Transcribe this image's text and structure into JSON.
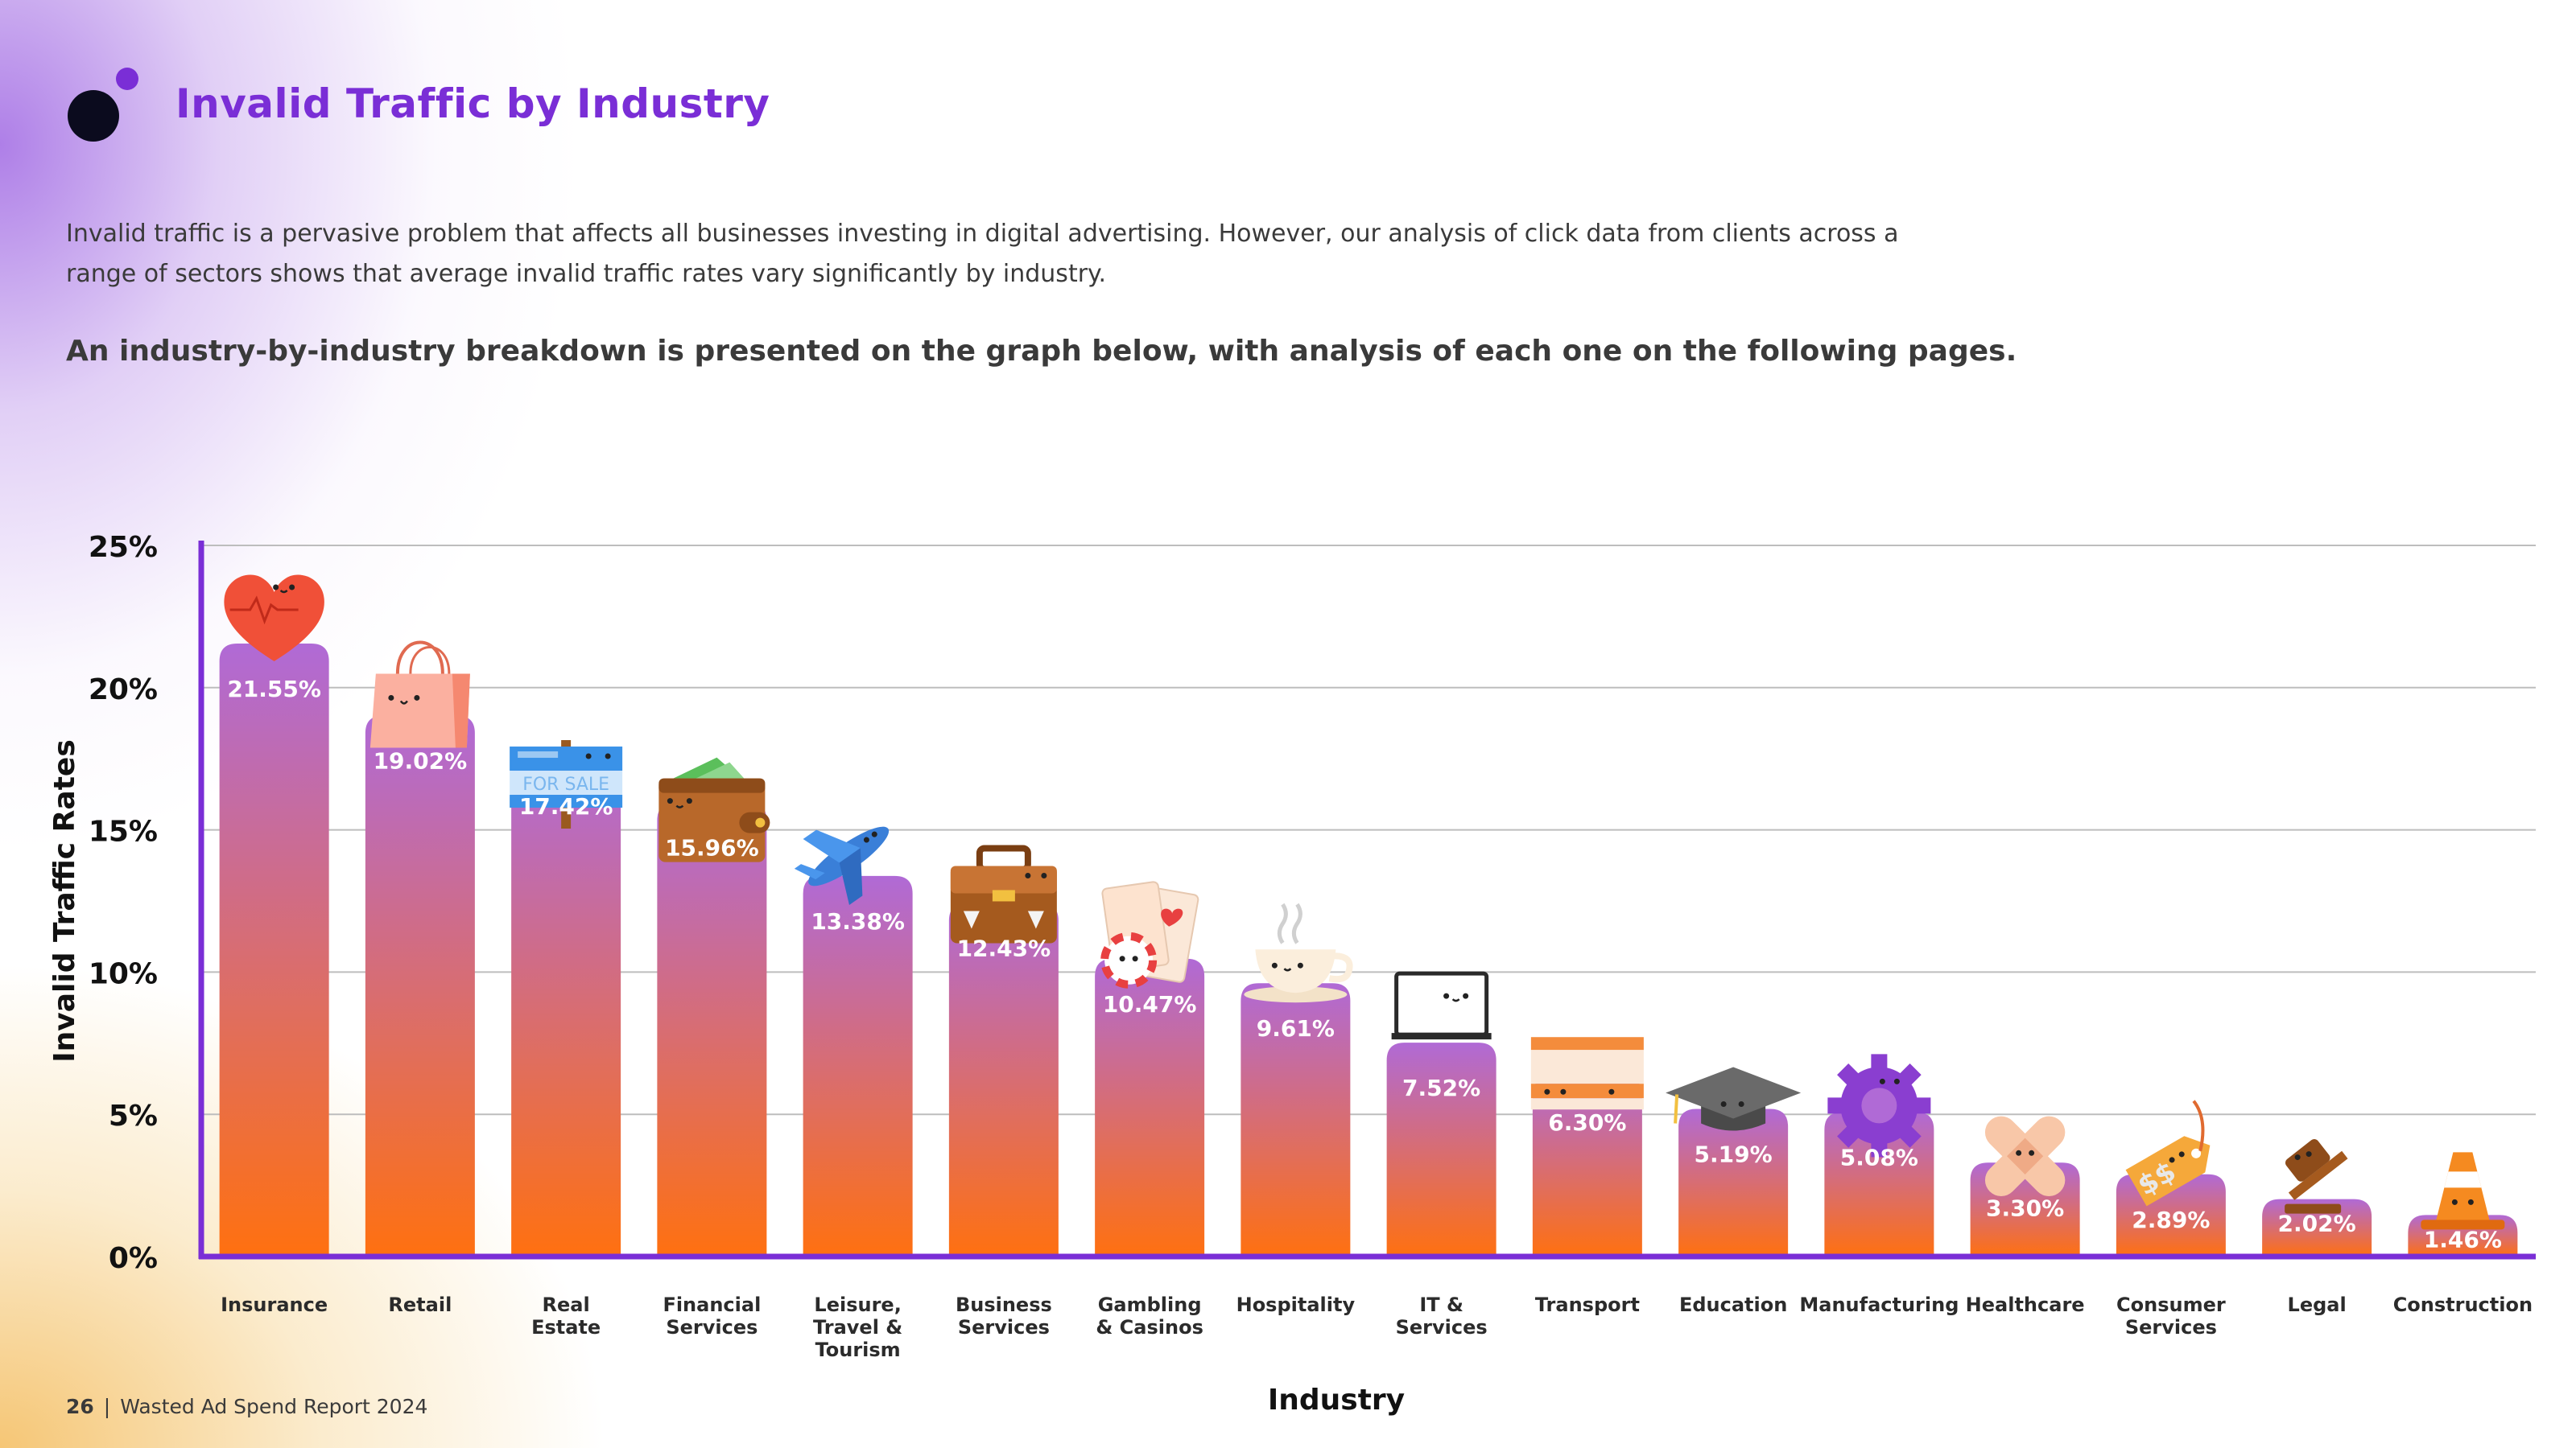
{
  "header": {
    "title": "Invalid Traffic by Industry"
  },
  "intro": {
    "paragraph": "Invalid traffic is a pervasive problem that affects all businesses investing in digital advertising. However, our analysis of click data from clients across a range of sectors shows that average invalid traffic rates vary significantly by industry.",
    "lead": "An industry-by-industry breakdown is presented on the graph below, with analysis of each one on the following pages."
  },
  "footer": {
    "page": "26",
    "separator": "|",
    "report": "Wasted Ad Spend Report 2024"
  },
  "colors": {
    "accent": "#7a2ed6",
    "bar_top": "#b06ad6",
    "bar_bottom": "#ff7010",
    "axis": "#7a2ed6",
    "grid": "#bdbdbd"
  },
  "chart_data": {
    "type": "bar",
    "xlabel": "Industry",
    "ylabel": "Invalid Traffic Rates",
    "ylim": [
      0,
      25
    ],
    "yticks": [
      0,
      5,
      10,
      15,
      20,
      25
    ],
    "ytick_labels": [
      "0%",
      "5%",
      "10%",
      "15%",
      "20%",
      "25%"
    ],
    "grid": true,
    "categories": [
      "Insurance",
      "Retail",
      "Real\nEstate",
      "Financial\nServices",
      "Leisure,\nTravel &\nTourism",
      "Business\nServices",
      "Gambling\n& Casinos",
      "Hospitality",
      "IT &\nServices",
      "Transport",
      "Education",
      "Manufacturing",
      "Healthcare",
      "Consumer\nServices",
      "Legal",
      "Construction"
    ],
    "values": [
      21.55,
      19.02,
      17.42,
      15.96,
      13.38,
      12.43,
      10.47,
      9.61,
      7.52,
      6.3,
      5.19,
      5.08,
      3.3,
      2.89,
      2.02,
      1.46
    ],
    "value_labels": [
      "21.55%",
      "19.02%",
      "17.42%",
      "15.96%",
      "13.38%",
      "12.43%",
      "10.47%",
      "9.61%",
      "7.52%",
      "6.30%",
      "5.19%",
      "5.08%",
      "3.30%",
      "2.89%",
      "2.02%",
      "1.46%"
    ],
    "icons": [
      "heart-icon",
      "shopping-bag-icon",
      "for-sale-sign-icon",
      "wallet-icon",
      "airplane-icon",
      "briefcase-icon",
      "playing-cards-icon",
      "coffee-cup-icon",
      "laptop-icon",
      "bus-icon",
      "graduation-cap-icon",
      "gear-icon",
      "bandage-icon",
      "price-tag-icon",
      "gavel-icon",
      "traffic-cone-icon"
    ],
    "sign_text": "FOR SALE",
    "tag_text": "$$"
  }
}
